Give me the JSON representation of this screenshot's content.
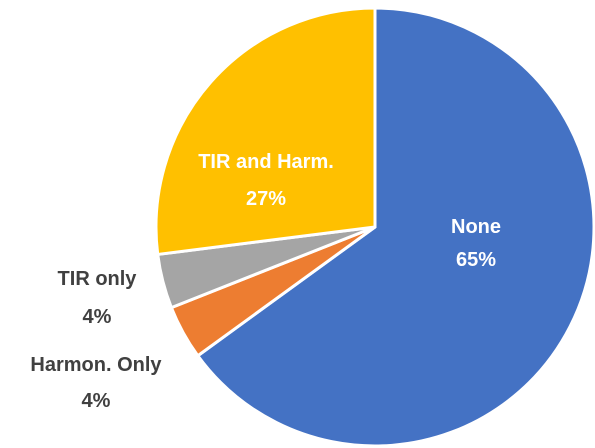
{
  "chart_data": {
    "type": "pie",
    "title": "",
    "start_angle_deg": 0,
    "direction": "clockwise",
    "slices": [
      {
        "category": "None",
        "percent_label": "65%",
        "value": 65,
        "color": "#4472c4"
      },
      {
        "category": "Harmon. Only",
        "percent_label": "4%",
        "value": 4,
        "color": "#ed7d31"
      },
      {
        "category": "TIR only",
        "percent_label": "4%",
        "value": 4,
        "color": "#a5a5a5"
      },
      {
        "category": "TIR and Harm.",
        "percent_label": "27%",
        "value": 27,
        "color": "#ffc000"
      }
    ],
    "label_colors": {
      "inside": "#ffffff",
      "outside": "#404040"
    },
    "legend": "none"
  }
}
